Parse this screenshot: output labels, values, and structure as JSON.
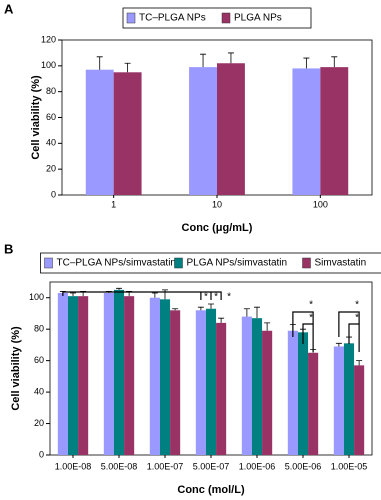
{
  "chart_data": [
    {
      "type": "bar",
      "panel": "A",
      "ylabel": "Cell viability (%)",
      "xlabel": "Conc (μg/mL)",
      "categories": [
        "1",
        "10",
        "100"
      ],
      "series": [
        {
          "name": "TC–PLGA NPs",
          "color": "#9999ff",
          "values": [
            97,
            99,
            98
          ],
          "errors": [
            10,
            10,
            8
          ]
        },
        {
          "name": "PLGA NPs",
          "color": "#993366",
          "values": [
            95,
            102,
            99
          ],
          "errors": [
            7,
            8,
            8
          ]
        }
      ],
      "ylim": [
        0,
        120
      ],
      "yticks": [
        0,
        20,
        40,
        60,
        80,
        100,
        120
      ]
    },
    {
      "type": "bar",
      "panel": "B",
      "ylabel": "Cell viability (%)",
      "xlabel": "Conc (mol/L)",
      "categories": [
        "1.00E-08",
        "5.00E-08",
        "1.00E-07",
        "5.00E-07",
        "1.00E-06",
        "5.00E-06",
        "1.00E-05"
      ],
      "series": [
        {
          "name": "TC–PLGA NPs/simvastatin",
          "color": "#9999ff",
          "values": [
            103,
            103,
            100,
            92,
            88,
            79,
            69
          ],
          "errors": [
            1,
            1,
            3,
            2,
            5,
            4,
            2
          ]
        },
        {
          "name": "PLGA NPs/simvastatin",
          "color": "#008080",
          "values": [
            101,
            105,
            99,
            93,
            87,
            78,
            71
          ],
          "errors": [
            2,
            1,
            6,
            3,
            7,
            2,
            4
          ]
        },
        {
          "name": "Simvastatin",
          "color": "#993366",
          "values": [
            101,
            101,
            92,
            84,
            79,
            65,
            57
          ],
          "errors": [
            3,
            3,
            1,
            3,
            5,
            2,
            3
          ]
        }
      ],
      "annotations": [
        "*",
        "*",
        "*",
        "*",
        "*",
        "*",
        "*"
      ],
      "ylim": [
        0,
        110
      ],
      "yticks": [
        0,
        20,
        40,
        60,
        80,
        100
      ]
    }
  ]
}
